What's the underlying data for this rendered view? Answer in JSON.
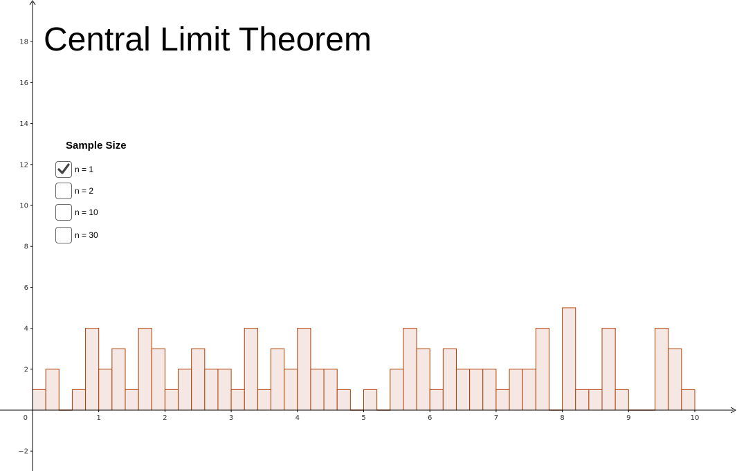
{
  "title": "Central Limit Theorem",
  "sample_size": {
    "heading": "Sample Size",
    "options": [
      {
        "label": "n = 1",
        "checked": true
      },
      {
        "label": "n = 2",
        "checked": false
      },
      {
        "label": "n = 10",
        "checked": false
      },
      {
        "label": "n = 30",
        "checked": false
      }
    ]
  },
  "colors": {
    "bar_fill": "#f5e7e3",
    "bar_stroke": "#b33c00",
    "axis": "#000000",
    "checkbox_border": "#666666",
    "check_mark": "#444444"
  },
  "chart_data": {
    "type": "bar",
    "title": "Central Limit Theorem",
    "bin_width": 0.2,
    "bin_starts": [
      0,
      0.2,
      0.4,
      0.6,
      0.8,
      1.0,
      1.2,
      1.4,
      1.6,
      1.8,
      2.0,
      2.2,
      2.4,
      2.6,
      2.8,
      3.0,
      3.2,
      3.4,
      3.6,
      3.8,
      4.0,
      4.2,
      4.4,
      4.6,
      4.8,
      5.0,
      5.2,
      5.4,
      5.6,
      5.8,
      6.0,
      6.2,
      6.4,
      6.6,
      6.8,
      7.0,
      7.2,
      7.4,
      7.6,
      7.8,
      8.0,
      8.2,
      8.4,
      8.6,
      8.8,
      9.0,
      9.2,
      9.4,
      9.6,
      9.8
    ],
    "values": [
      1,
      2,
      0,
      1,
      4,
      2,
      3,
      1,
      4,
      3,
      1,
      2,
      3,
      2,
      2,
      1,
      4,
      1,
      3,
      2,
      4,
      2,
      2,
      1,
      0,
      1,
      0,
      2,
      4,
      3,
      1,
      3,
      2,
      2,
      2,
      1,
      2,
      2,
      4,
      0,
      5,
      1,
      1,
      4,
      1,
      0,
      0,
      4,
      3,
      1
    ],
    "xlim": [
      0,
      10
    ],
    "ylim": [
      -2,
      18
    ],
    "x_ticks": [
      1,
      2,
      3,
      4,
      5,
      6,
      7,
      8,
      9,
      10
    ],
    "y_ticks": [
      -2,
      2,
      4,
      6,
      8,
      10,
      12,
      14,
      16,
      18
    ],
    "origin_label": "0",
    "grid": false
  }
}
